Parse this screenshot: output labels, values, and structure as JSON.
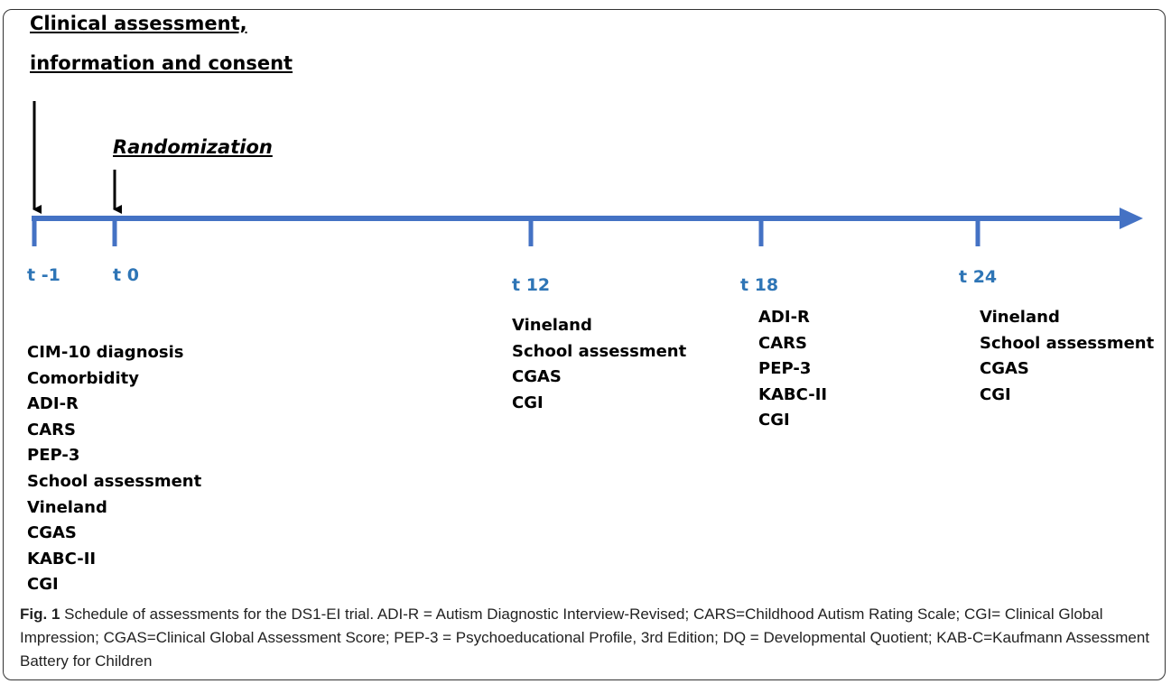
{
  "header": {
    "title_line1": "Clinical assessment,",
    "title_line2": "information and consent",
    "randomization": "Randomization"
  },
  "timeline": [
    {
      "label": "t -1",
      "assessments": [
        "CIM-10 diagnosis",
        "Comorbidity",
        "ADI-R",
        "CARS",
        "PEP-3",
        "School assessment",
        "Vineland",
        "CGAS",
        "KABC-II",
        "CGI"
      ]
    },
    {
      "label": "t 0",
      "assessments": []
    },
    {
      "label": "t 12",
      "assessments": [
        "Vineland",
        "School assessment",
        "CGAS",
        "CGI"
      ]
    },
    {
      "label": "t 18",
      "assessments": [
        "ADI-R",
        "CARS",
        "PEP-3",
        "KABC-II",
        "CGI"
      ]
    },
    {
      "label": "t 24",
      "assessments": [
        "Vineland",
        "School assessment",
        "CGAS",
        "CGI"
      ]
    }
  ],
  "caption": {
    "label": "Fig. 1",
    "text": "Schedule of assessments for the DS1-EI trial. ADI-R = Autism Diagnostic Interview-Revised; CARS=Childhood Autism Rating Scale; CGI= Clinical Global Impression; CGAS=Clinical Global Assessment Score; PEP-3 = Psychoeducational Profile, 3rd Edition; DQ = Developmental Quotient; KAB-C=Kaufmann Assessment Battery for Children"
  }
}
